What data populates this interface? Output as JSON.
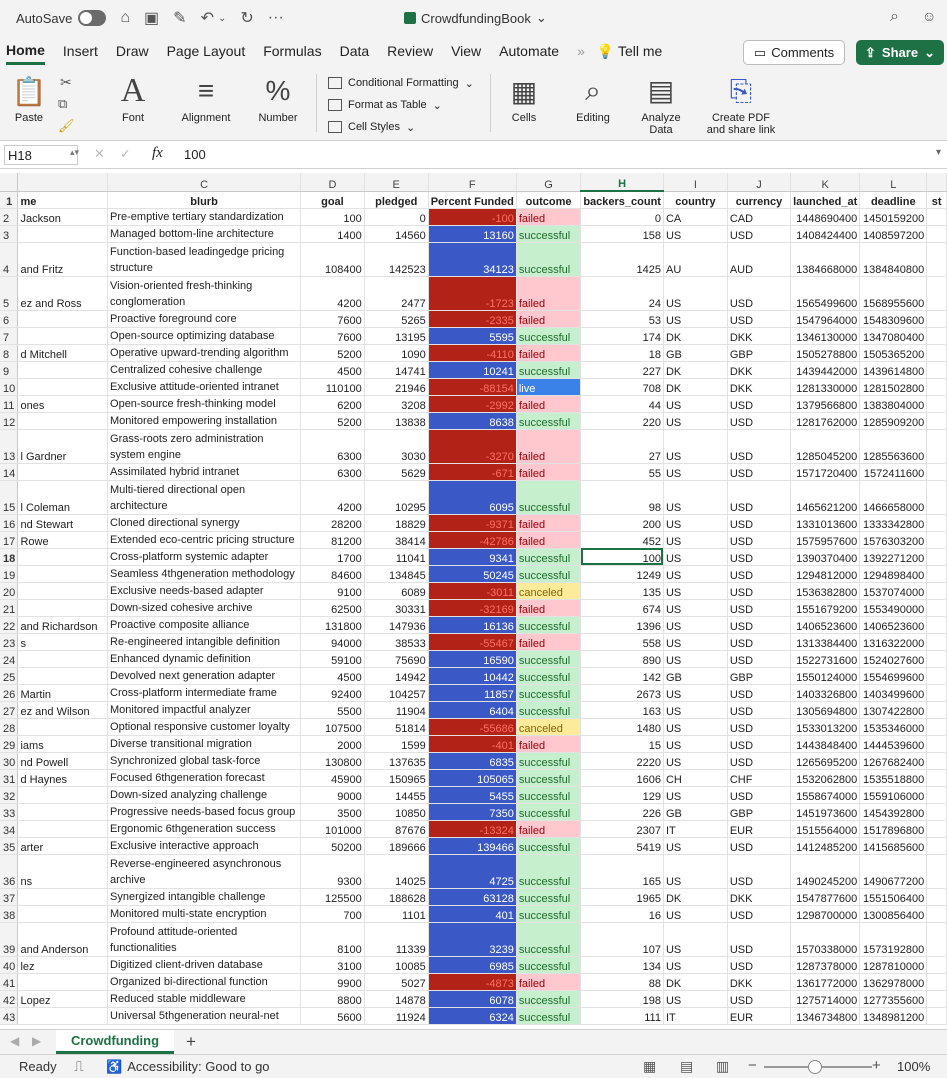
{
  "titlebar": {
    "autosave_label": "AutoSave",
    "autosave_state": "off",
    "filename": "CrowdfundingBook",
    "more": "···"
  },
  "ribbon_tabs": [
    "Home",
    "Insert",
    "Draw",
    "Page Layout",
    "Formulas",
    "Data",
    "Review",
    "View",
    "Automate"
  ],
  "ribbon_extra": {
    "tell_me": "Tell me",
    "comments": "Comments",
    "share": "Share"
  },
  "ribbon": {
    "paste": "Paste",
    "font": "Font",
    "alignment": "Alignment",
    "number": "Number",
    "conditional_formatting": "Conditional Formatting",
    "format_as_table": "Format as Table",
    "cell_styles": "Cell Styles",
    "cells": "Cells",
    "editing": "Editing",
    "analyze_data_1": "Analyze",
    "analyze_data_2": "Data",
    "create_pdf_1": "Create PDF",
    "create_pdf_2": "and share link"
  },
  "formula_bar": {
    "name_box": "H18",
    "fx": "fx",
    "value": "100"
  },
  "grid": {
    "columns": [
      "me",
      "C",
      "D",
      "E",
      "F",
      "G",
      "H",
      "I",
      "J",
      "K",
      "L",
      "st"
    ],
    "column_headers_visible": [
      "",
      "C",
      "D",
      "E",
      "F",
      "G",
      "H",
      "I",
      "J",
      "K",
      "L",
      ""
    ],
    "header_row": [
      "me",
      "blurb",
      "goal",
      "pledged",
      "Percent Funded",
      "outcome",
      "backers_count",
      "country",
      "currency",
      "launched_at",
      "deadline",
      "st"
    ],
    "rows": [
      {
        "r": "2",
        "name": " Jackson",
        "blurb": "Pre-emptive tertiary standardization",
        "goal": "100",
        "pledged": "0",
        "pf": "-100",
        "outcome": "failed",
        "backers": "0",
        "country": "CA",
        "currency": "CAD",
        "launched": "1448690400",
        "deadline": "1450159200"
      },
      {
        "r": "3",
        "name": "",
        "blurb": "Managed bottom-line architecture",
        "goal": "1400",
        "pledged": "14560",
        "pf": "13160",
        "outcome": "successful",
        "backers": "158",
        "country": "US",
        "currency": "USD",
        "launched": "1408424400",
        "deadline": "1408597200"
      },
      {
        "r": "4",
        "name": "and Fritz",
        "blurb": "Function-based leadingedge pricing structure",
        "goal": "108400",
        "pledged": "142523",
        "pf": "34123",
        "outcome": "successful",
        "backers": "1425",
        "country": "AU",
        "currency": "AUD",
        "launched": "1384668000",
        "deadline": "1384840800",
        "tall": true
      },
      {
        "r": "5",
        "name": "ez and Ross",
        "blurb": "Vision-oriented fresh-thinking conglomeration",
        "goal": "4200",
        "pledged": "2477",
        "pf": "-1723",
        "outcome": "failed",
        "backers": "24",
        "country": "US",
        "currency": "USD",
        "launched": "1565499600",
        "deadline": "1568955600",
        "tall": true
      },
      {
        "r": "6",
        "name": "",
        "blurb": "Proactive foreground core",
        "goal": "7600",
        "pledged": "5265",
        "pf": "-2335",
        "outcome": "failed",
        "backers": "53",
        "country": "US",
        "currency": "USD",
        "launched": "1547964000",
        "deadline": "1548309600"
      },
      {
        "r": "7",
        "name": "",
        "blurb": "Open-source optimizing database",
        "goal": "7600",
        "pledged": "13195",
        "pf": "5595",
        "outcome": "successful",
        "backers": "174",
        "country": "DK",
        "currency": "DKK",
        "launched": "1346130000",
        "deadline": "1347080400"
      },
      {
        "r": "8",
        "name": "d Mitchell",
        "blurb": "Operative upward-trending algorithm",
        "goal": "5200",
        "pledged": "1090",
        "pf": "-4110",
        "outcome": "failed",
        "backers": "18",
        "country": "GB",
        "currency": "GBP",
        "launched": "1505278800",
        "deadline": "1505365200"
      },
      {
        "r": "9",
        "name": "",
        "blurb": "Centralized cohesive challenge",
        "goal": "4500",
        "pledged": "14741",
        "pf": "10241",
        "outcome": "successful",
        "backers": "227",
        "country": "DK",
        "currency": "DKK",
        "launched": "1439442000",
        "deadline": "1439614800"
      },
      {
        "r": "10",
        "name": "",
        "blurb": "Exclusive attitude-oriented intranet",
        "goal": "110100",
        "pledged": "21946",
        "pf": "-88154",
        "outcome": "live",
        "backers": "708",
        "country": "DK",
        "currency": "DKK",
        "launched": "1281330000",
        "deadline": "1281502800"
      },
      {
        "r": "11",
        "name": "ones",
        "blurb": "Open-source fresh-thinking model",
        "goal": "6200",
        "pledged": "3208",
        "pf": "-2992",
        "outcome": "failed",
        "backers": "44",
        "country": "US",
        "currency": "USD",
        "launched": "1379566800",
        "deadline": "1383804000"
      },
      {
        "r": "12",
        "name": "",
        "blurb": "Monitored empowering installation",
        "goal": "5200",
        "pledged": "13838",
        "pf": "8638",
        "outcome": "successful",
        "backers": "220",
        "country": "US",
        "currency": "USD",
        "launched": "1281762000",
        "deadline": "1285909200"
      },
      {
        "r": "13",
        "name": "l Gardner",
        "blurb": "Grass-roots zero administration system engine",
        "goal": "6300",
        "pledged": "3030",
        "pf": "-3270",
        "outcome": "failed",
        "backers": "27",
        "country": "US",
        "currency": "USD",
        "launched": "1285045200",
        "deadline": "1285563600",
        "tall": true
      },
      {
        "r": "14",
        "name": "",
        "blurb": "Assimilated hybrid intranet",
        "goal": "6300",
        "pledged": "5629",
        "pf": "-671",
        "outcome": "failed",
        "backers": "55",
        "country": "US",
        "currency": "USD",
        "launched": "1571720400",
        "deadline": "1572411600"
      },
      {
        "r": "15",
        "name": "l Coleman",
        "blurb": "Multi-tiered directional open architecture",
        "goal": "4200",
        "pledged": "10295",
        "pf": "6095",
        "outcome": "successful",
        "backers": "98",
        "country": "US",
        "currency": "USD",
        "launched": "1465621200",
        "deadline": "1466658000",
        "tall": true
      },
      {
        "r": "16",
        "name": "nd Stewart",
        "blurb": "Cloned directional synergy",
        "goal": "28200",
        "pledged": "18829",
        "pf": "-9371",
        "outcome": "failed",
        "backers": "200",
        "country": "US",
        "currency": "USD",
        "launched": "1331013600",
        "deadline": "1333342800"
      },
      {
        "r": "17",
        "name": "Rowe",
        "blurb": "Extended eco-centric pricing structure",
        "goal": "81200",
        "pledged": "38414",
        "pf": "-42786",
        "outcome": "failed",
        "backers": "452",
        "country": "US",
        "currency": "USD",
        "launched": "1575957600",
        "deadline": "1576303200"
      },
      {
        "r": "18",
        "name": "",
        "blurb": "Cross-platform systemic adapter",
        "goal": "1700",
        "pledged": "11041",
        "pf": "9341",
        "outcome": "successful",
        "backers": "100",
        "country": "US",
        "currency": "USD",
        "launched": "1390370400",
        "deadline": "1392271200",
        "selected": true
      },
      {
        "r": "19",
        "name": "",
        "blurb": "Seamless 4thgeneration methodology",
        "goal": "84600",
        "pledged": "134845",
        "pf": "50245",
        "outcome": "successful",
        "backers": "1249",
        "country": "US",
        "currency": "USD",
        "launched": "1294812000",
        "deadline": "1294898400"
      },
      {
        "r": "20",
        "name": "",
        "blurb": "Exclusive needs-based adapter",
        "goal": "9100",
        "pledged": "6089",
        "pf": "-3011",
        "outcome": "canceled",
        "backers": "135",
        "country": "US",
        "currency": "USD",
        "launched": "1536382800",
        "deadline": "1537074000"
      },
      {
        "r": "21",
        "name": "",
        "blurb": "Down-sized cohesive archive",
        "goal": "62500",
        "pledged": "30331",
        "pf": "-32169",
        "outcome": "failed",
        "backers": "674",
        "country": "US",
        "currency": "USD",
        "launched": "1551679200",
        "deadline": "1553490000"
      },
      {
        "r": "22",
        "name": "and Richardson",
        "blurb": "Proactive composite alliance",
        "goal": "131800",
        "pledged": "147936",
        "pf": "16136",
        "outcome": "successful",
        "backers": "1396",
        "country": "US",
        "currency": "USD",
        "launched": "1406523600",
        "deadline": "1406523600"
      },
      {
        "r": "23",
        "name": "s",
        "blurb": "Re-engineered intangible definition",
        "goal": "94000",
        "pledged": "38533",
        "pf": "-55467",
        "outcome": "failed",
        "backers": "558",
        "country": "US",
        "currency": "USD",
        "launched": "1313384400",
        "deadline": "1316322000"
      },
      {
        "r": "24",
        "name": "",
        "blurb": "Enhanced dynamic definition",
        "goal": "59100",
        "pledged": "75690",
        "pf": "16590",
        "outcome": "successful",
        "backers": "890",
        "country": "US",
        "currency": "USD",
        "launched": "1522731600",
        "deadline": "1524027600"
      },
      {
        "r": "25",
        "name": "",
        "blurb": "Devolved next generation adapter",
        "goal": "4500",
        "pledged": "14942",
        "pf": "10442",
        "outcome": "successful",
        "backers": "142",
        "country": "GB",
        "currency": "GBP",
        "launched": "1550124000",
        "deadline": "1554699600"
      },
      {
        "r": "26",
        "name": "Martin",
        "blurb": "Cross-platform intermediate frame",
        "goal": "92400",
        "pledged": "104257",
        "pf": "11857",
        "outcome": "successful",
        "backers": "2673",
        "country": "US",
        "currency": "USD",
        "launched": "1403326800",
        "deadline": "1403499600"
      },
      {
        "r": "27",
        "name": "ez and Wilson",
        "blurb": "Monitored impactful analyzer",
        "goal": "5500",
        "pledged": "11904",
        "pf": "6404",
        "outcome": "successful",
        "backers": "163",
        "country": "US",
        "currency": "USD",
        "launched": "1305694800",
        "deadline": "1307422800"
      },
      {
        "r": "28",
        "name": "",
        "blurb": "Optional responsive customer loyalty",
        "goal": "107500",
        "pledged": "51814",
        "pf": "-55686",
        "outcome": "canceled",
        "backers": "1480",
        "country": "US",
        "currency": "USD",
        "launched": "1533013200",
        "deadline": "1535346000"
      },
      {
        "r": "29",
        "name": "iams",
        "blurb": "Diverse transitional migration",
        "goal": "2000",
        "pledged": "1599",
        "pf": "-401",
        "outcome": "failed",
        "backers": "15",
        "country": "US",
        "currency": "USD",
        "launched": "1443848400",
        "deadline": "1444539600"
      },
      {
        "r": "30",
        "name": "nd Powell",
        "blurb": "Synchronized global task-force",
        "goal": "130800",
        "pledged": "137635",
        "pf": "6835",
        "outcome": "successful",
        "backers": "2220",
        "country": "US",
        "currency": "USD",
        "launched": "1265695200",
        "deadline": "1267682400"
      },
      {
        "r": "31",
        "name": "d Haynes",
        "blurb": "Focused 6thgeneration forecast",
        "goal": "45900",
        "pledged": "150965",
        "pf": "105065",
        "outcome": "successful",
        "backers": "1606",
        "country": "CH",
        "currency": "CHF",
        "launched": "1532062800",
        "deadline": "1535518800"
      },
      {
        "r": "32",
        "name": "",
        "blurb": "Down-sized analyzing challenge",
        "goal": "9000",
        "pledged": "14455",
        "pf": "5455",
        "outcome": "successful",
        "backers": "129",
        "country": "US",
        "currency": "USD",
        "launched": "1558674000",
        "deadline": "1559106000"
      },
      {
        "r": "33",
        "name": "",
        "blurb": "Progressive needs-based focus group",
        "goal": "3500",
        "pledged": "10850",
        "pf": "7350",
        "outcome": "successful",
        "backers": "226",
        "country": "GB",
        "currency": "GBP",
        "launched": "1451973600",
        "deadline": "1454392800"
      },
      {
        "r": "34",
        "name": "",
        "blurb": "Ergonomic 6thgeneration success",
        "goal": "101000",
        "pledged": "87676",
        "pf": "-13324",
        "outcome": "failed",
        "backers": "2307",
        "country": "IT",
        "currency": "EUR",
        "launched": "1515564000",
        "deadline": "1517896800"
      },
      {
        "r": "35",
        "name": "arter",
        "blurb": "Exclusive interactive approach",
        "goal": "50200",
        "pledged": "189666",
        "pf": "139466",
        "outcome": "successful",
        "backers": "5419",
        "country": "US",
        "currency": "USD",
        "launched": "1412485200",
        "deadline": "1415685600"
      },
      {
        "r": "36",
        "name": "ns",
        "blurb": "Reverse-engineered asynchronous archive",
        "goal": "9300",
        "pledged": "14025",
        "pf": "4725",
        "outcome": "successful",
        "backers": "165",
        "country": "US",
        "currency": "USD",
        "launched": "1490245200",
        "deadline": "1490677200",
        "tall": true
      },
      {
        "r": "37",
        "name": "",
        "blurb": "Synergized intangible challenge",
        "goal": "125500",
        "pledged": "188628",
        "pf": "63128",
        "outcome": "successful",
        "backers": "1965",
        "country": "DK",
        "currency": "DKK",
        "launched": "1547877600",
        "deadline": "1551506400"
      },
      {
        "r": "38",
        "name": "",
        "blurb": "Monitored multi-state encryption",
        "goal": "700",
        "pledged": "1101",
        "pf": "401",
        "outcome": "successful",
        "backers": "16",
        "country": "US",
        "currency": "USD",
        "launched": "1298700000",
        "deadline": "1300856400"
      },
      {
        "r": "39",
        "name": "and Anderson",
        "blurb": "Profound attitude-oriented functionalities",
        "goal": "8100",
        "pledged": "11339",
        "pf": "3239",
        "outcome": "successful",
        "backers": "107",
        "country": "US",
        "currency": "USD",
        "launched": "1570338000",
        "deadline": "1573192800",
        "tall": true
      },
      {
        "r": "40",
        "name": "lez",
        "blurb": "Digitized client-driven database",
        "goal": "3100",
        "pledged": "10085",
        "pf": "6985",
        "outcome": "successful",
        "backers": "134",
        "country": "US",
        "currency": "USD",
        "launched": "1287378000",
        "deadline": "1287810000"
      },
      {
        "r": "41",
        "name": "",
        "blurb": "Organized bi-directional function",
        "goal": "9900",
        "pledged": "5027",
        "pf": "-4873",
        "outcome": "failed",
        "backers": "88",
        "country": "DK",
        "currency": "DKK",
        "launched": "1361772000",
        "deadline": "1362978000"
      },
      {
        "r": "42",
        "name": "Lopez",
        "blurb": "Reduced stable middleware",
        "goal": "8800",
        "pledged": "14878",
        "pf": "6078",
        "outcome": "successful",
        "backers": "198",
        "country": "US",
        "currency": "USD",
        "launched": "1275714000",
        "deadline": "1277355600"
      },
      {
        "r": "43",
        "name": "",
        "blurb": "Universal 5thgeneration neural-net",
        "goal": "5600",
        "pledged": "11924",
        "pf": "6324",
        "outcome": "successful",
        "backers": "111",
        "country": "IT",
        "currency": "EUR",
        "launched": "1346734800",
        "deadline": "1348981200"
      }
    ]
  },
  "sheet_tabs": {
    "active": "Crowdfunding",
    "add": "+"
  },
  "status_bar": {
    "ready": "Ready",
    "accessibility": "Accessibility: Good to go",
    "zoom": "100%"
  },
  "colors": {
    "accent": "#1e7145",
    "pf_positive": "#3a59c6",
    "pf_negative": "#b32217"
  }
}
